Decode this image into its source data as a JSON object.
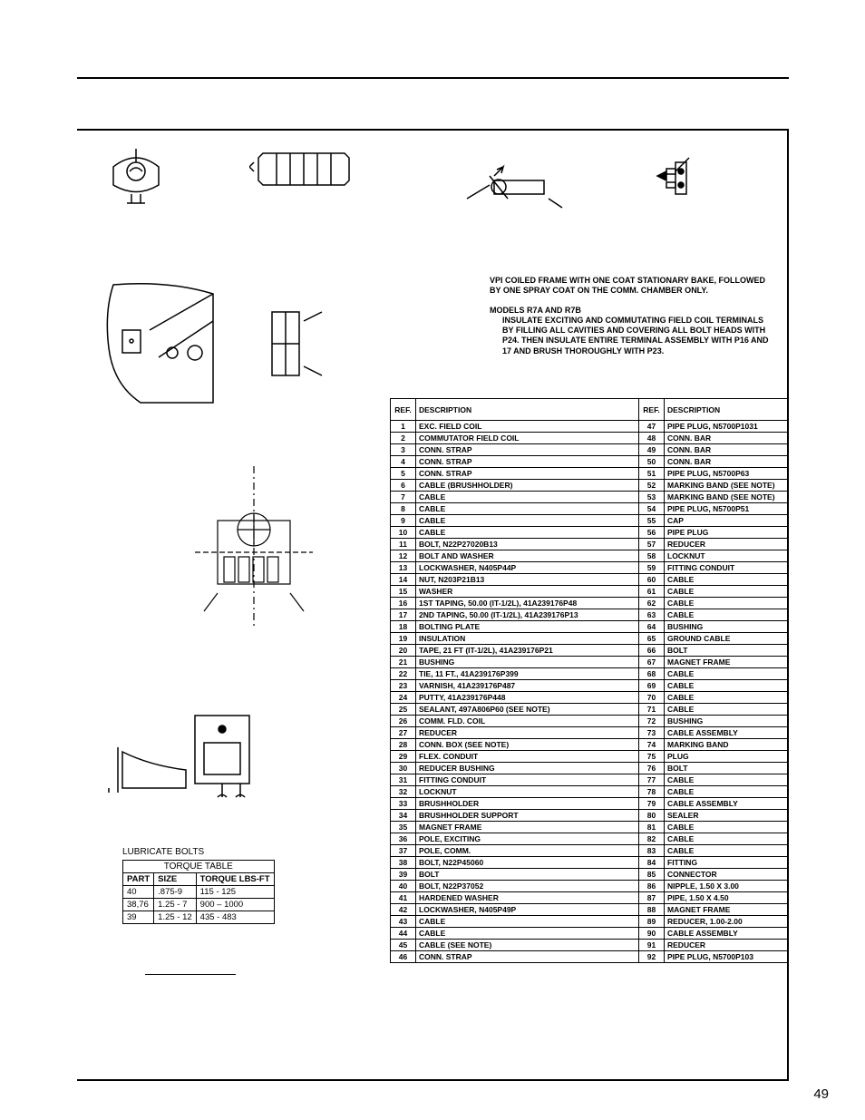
{
  "page_number": "49",
  "notes": {
    "p1": "VPI COILED FRAME WITH ONE COAT STATIONARY BAKE, FOLLOWED BY ONE SPRAY COAT ON THE COMM. CHAMBER ONLY.",
    "p2_head": "MODELS R7A AND R7B",
    "p2_body": "INSULATE EXCITING AND COMMUTATING FIELD COIL TERMINALS BY FILLING ALL CAVITIES AND COVERING ALL BOLT HEADS WITH P24. THEN INSULATE ENTIRE TERMINAL ASSEMBLY WITH P16 AND 17 AND BRUSH THOROUGHLY WITH P23."
  },
  "torque": {
    "label": "LUBRICATE BOLTS",
    "title": "TORQUE TABLE",
    "cols": [
      "PART",
      "SIZE",
      "TORQUE LBS-FT"
    ],
    "rows": [
      [
        "40",
        ".875-9",
        "115 - 125"
      ],
      [
        "38,76",
        "1.25 - 7",
        "900 – 1000"
      ],
      [
        "39",
        "1.25 - 12",
        "435 - 483"
      ]
    ]
  },
  "parts_header": {
    "ref": "REF.",
    "desc": "DESCRIPTION"
  },
  "parts_left": [
    [
      "1",
      "EXC. FIELD COIL"
    ],
    [
      "2",
      "COMMUTATOR FIELD COIL"
    ],
    [
      "3",
      "CONN. STRAP"
    ],
    [
      "4",
      "CONN. STRAP"
    ],
    [
      "5",
      "CONN. STRAP"
    ],
    [
      "6",
      "CABLE (BRUSHHOLDER)"
    ],
    [
      "7",
      "CABLE"
    ],
    [
      "8",
      "CABLE"
    ],
    [
      "9",
      "CABLE"
    ],
    [
      "10",
      "CABLE"
    ],
    [
      "11",
      "BOLT, N22P27020B13"
    ],
    [
      "12",
      "BOLT AND WASHER"
    ],
    [
      "13",
      "LOCKWASHER, N405P44P"
    ],
    [
      "14",
      "NUT, N203P21B13"
    ],
    [
      "15",
      "WASHER"
    ],
    [
      "16",
      "1ST TAPING, 50.00 (IT-1/2L), 41A239176P48"
    ],
    [
      "17",
      "2ND TAPING, 50.00 (IT-1/2L), 41A239176P13"
    ],
    [
      "18",
      "BOLTING PLATE"
    ],
    [
      "19",
      "INSULATION"
    ],
    [
      "20",
      "TAPE, 21 FT (IT-1/2L), 41A239176P21"
    ],
    [
      "21",
      "BUSHING"
    ],
    [
      "22",
      "TIE, 11 FT., 41A239176P399"
    ],
    [
      "23",
      "VARNISH, 41A239176P487"
    ],
    [
      "24",
      "PUTTY, 41A239176P448"
    ],
    [
      "25",
      "SEALANT, 497A806P60 (SEE NOTE)"
    ],
    [
      "26",
      "COMM. FLD. COIL"
    ],
    [
      "27",
      "REDUCER"
    ],
    [
      "28",
      "CONN. BOX (SEE NOTE)"
    ],
    [
      "29",
      "FLEX. CONDUIT"
    ],
    [
      "30",
      "REDUCER BUSHING"
    ],
    [
      "31",
      "FITTING CONDUIT"
    ],
    [
      "32",
      "LOCKNUT"
    ],
    [
      "33",
      "BRUSHHOLDER"
    ],
    [
      "34",
      "BRUSHHOLDER SUPPORT"
    ],
    [
      "35",
      "MAGNET FRAME"
    ],
    [
      "36",
      "POLE, EXCITING"
    ],
    [
      "37",
      "POLE, COMM."
    ],
    [
      "38",
      "BOLT, N22P45060"
    ],
    [
      "39",
      "BOLT"
    ],
    [
      "40",
      "BOLT, N22P37052"
    ],
    [
      "41",
      "HARDENED WASHER"
    ],
    [
      "42",
      "LOCKWASHER, N405P49P"
    ],
    [
      "43",
      "CABLE"
    ],
    [
      "44",
      "CABLE"
    ],
    [
      "45",
      "CABLE (SEE NOTE)"
    ],
    [
      "46",
      "CONN. STRAP"
    ]
  ],
  "parts_right": [
    [
      "47",
      "PIPE PLUG, N5700P1031"
    ],
    [
      "48",
      "CONN. BAR"
    ],
    [
      "49",
      "CONN. BAR"
    ],
    [
      "50",
      "CONN. BAR"
    ],
    [
      "51",
      "PIPE PLUG, N5700P63"
    ],
    [
      "52",
      "MARKING BAND (SEE NOTE)"
    ],
    [
      "53",
      "MARKING BAND (SEE NOTE)"
    ],
    [
      "54",
      "PIPE PLUG, N5700P51"
    ],
    [
      "55",
      "CAP"
    ],
    [
      "56",
      "PIPE PLUG"
    ],
    [
      "57",
      "REDUCER"
    ],
    [
      "58",
      "LOCKNUT"
    ],
    [
      "59",
      "FITTING CONDUIT"
    ],
    [
      "60",
      "CABLE"
    ],
    [
      "61",
      "CABLE"
    ],
    [
      "62",
      "CABLE"
    ],
    [
      "63",
      "CABLE"
    ],
    [
      "64",
      "BUSHING"
    ],
    [
      "65",
      "GROUND CABLE"
    ],
    [
      "66",
      "BOLT"
    ],
    [
      "67",
      "MAGNET FRAME"
    ],
    [
      "68",
      "CABLE"
    ],
    [
      "69",
      "CABLE"
    ],
    [
      "70",
      "CABLE"
    ],
    [
      "71",
      "CABLE"
    ],
    [
      "72",
      "BUSHING"
    ],
    [
      "73",
      "CABLE ASSEMBLY"
    ],
    [
      "74",
      "MARKING BAND"
    ],
    [
      "75",
      "PLUG"
    ],
    [
      "76",
      "BOLT"
    ],
    [
      "77",
      "CABLE"
    ],
    [
      "78",
      "CABLE"
    ],
    [
      "79",
      "CABLE ASSEMBLY"
    ],
    [
      "80",
      "SEALER"
    ],
    [
      "81",
      "CABLE"
    ],
    [
      "82",
      "CABLE"
    ],
    [
      "83",
      "CABLE"
    ],
    [
      "84",
      "FITTING"
    ],
    [
      "85",
      "CONNECTOR"
    ],
    [
      "86",
      "NIPPLE, 1.50 X 3.00"
    ],
    [
      "87",
      "PIPE, 1.50 X 4.50"
    ],
    [
      "88",
      "MAGNET FRAME"
    ],
    [
      "89",
      "REDUCER, 1.00-2.00"
    ],
    [
      "90",
      "CABLE ASSEMBLY"
    ],
    [
      "91",
      "REDUCER"
    ],
    [
      "92",
      "PIPE PLUG, N5700P103"
    ]
  ]
}
